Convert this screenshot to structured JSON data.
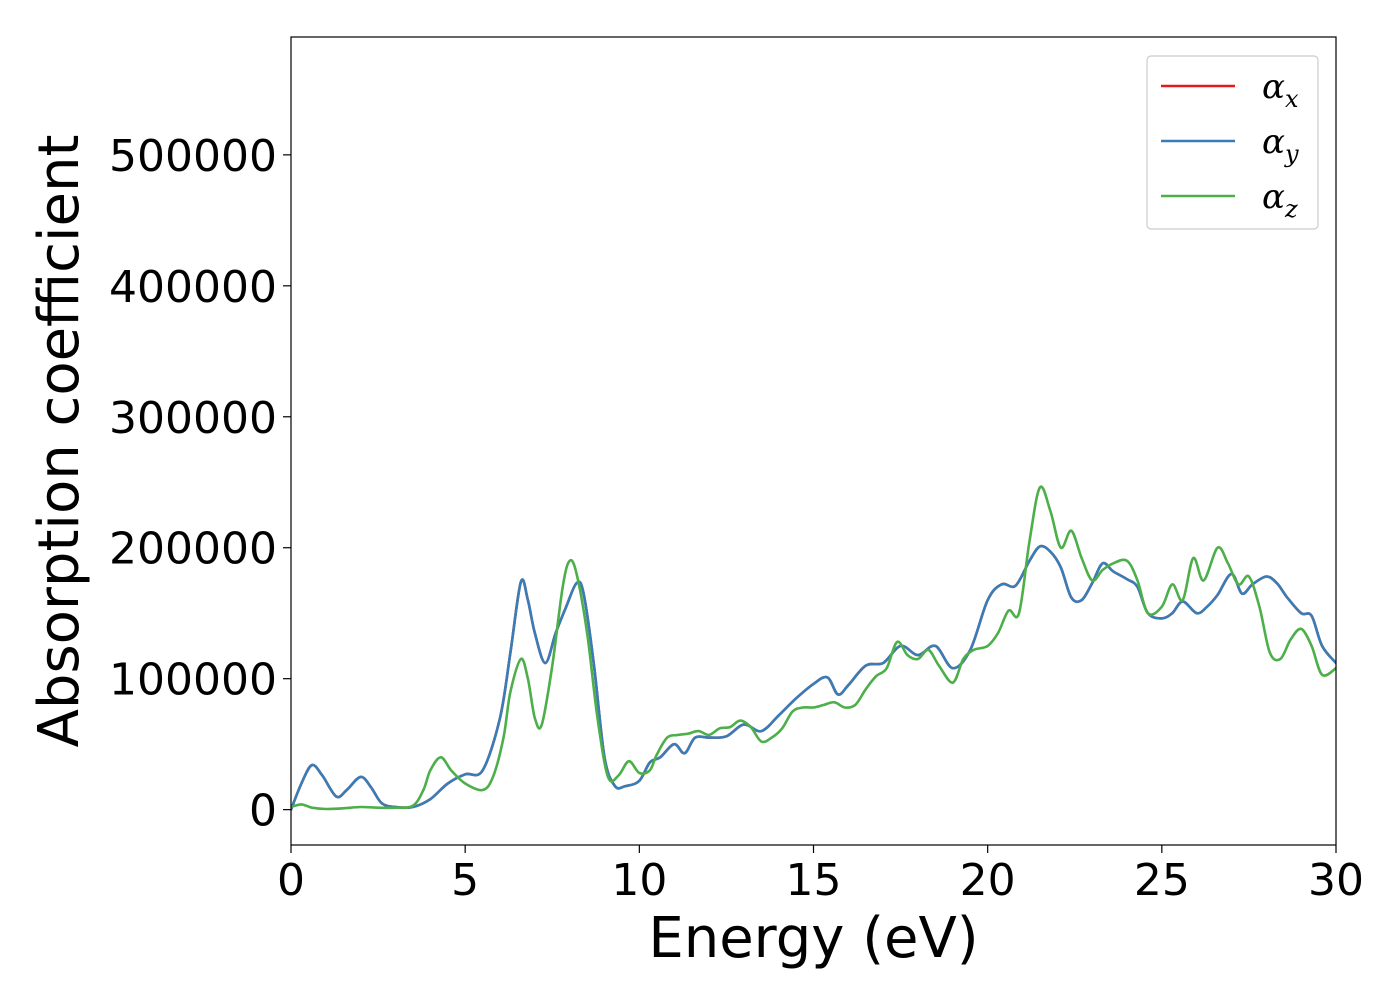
{
  "chart_data": {
    "type": "line",
    "xlabel": "Energy (eV)",
    "ylabel": "Absorption coefficient",
    "xlim": [
      0,
      30
    ],
    "ylim": [
      -27000,
      590000
    ],
    "xticks": [
      0,
      5,
      10,
      15,
      20,
      25,
      30
    ],
    "yticks": [
      0,
      100000,
      200000,
      300000,
      400000,
      500000
    ],
    "grid": false,
    "legend_position": "top-right",
    "series": [
      {
        "name": "α_x",
        "symbol": "α",
        "subscript": "x",
        "color": "#e41a1c",
        "x": [
          0,
          0.3,
          0.6,
          0.9,
          1.3,
          1.6,
          2.0,
          2.3,
          2.6,
          3.0,
          3.5,
          4.0,
          4.5,
          5.0,
          5.5,
          6.0,
          6.3,
          6.6,
          6.8,
          7.0,
          7.3,
          7.6,
          7.9,
          8.2,
          8.4,
          8.7,
          9.0,
          9.3,
          9.6,
          10.0,
          10.3,
          10.6,
          11.0,
          11.3,
          11.6,
          12.0,
          12.5,
          13.0,
          13.5,
          14.0,
          14.5,
          15.0,
          15.4,
          15.7,
          16.0,
          16.5,
          17.0,
          17.5,
          18.0,
          18.5,
          19.0,
          19.5,
          20.0,
          20.4,
          20.8,
          21.2,
          21.5,
          21.8,
          22.1,
          22.4,
          22.7,
          23.0,
          23.3,
          23.6,
          24.0,
          24.3,
          24.6,
          25.0,
          25.3,
          25.6,
          26.0,
          26.3,
          26.6,
          27.0,
          27.3,
          27.6,
          28.0,
          28.3,
          28.6,
          29.0,
          29.3,
          29.6,
          30.0
        ],
        "y": [
          0,
          20000,
          34000,
          26000,
          10000,
          15000,
          25000,
          17000,
          5000,
          2000,
          2000,
          8000,
          20000,
          27000,
          30000,
          70000,
          120000,
          174000,
          160000,
          135000,
          112000,
          135000,
          155000,
          173000,
          165000,
          110000,
          40000,
          18000,
          18000,
          22000,
          36000,
          40000,
          50000,
          43000,
          55000,
          55000,
          56000,
          65000,
          60000,
          72000,
          85000,
          96000,
          101000,
          88000,
          95000,
          110000,
          112000,
          125000,
          118000,
          125000,
          108000,
          122000,
          160000,
          172000,
          171000,
          190000,
          201000,
          197000,
          185000,
          162000,
          160000,
          173000,
          188000,
          182000,
          176000,
          170000,
          150000,
          146000,
          150000,
          159000,
          150000,
          155000,
          164000,
          180000,
          165000,
          172000,
          178000,
          173000,
          162000,
          150000,
          148000,
          125000,
          112000
        ]
      },
      {
        "name": "α_y",
        "symbol": "α",
        "subscript": "y",
        "color": "#377eb8",
        "x": [
          0,
          0.3,
          0.6,
          0.9,
          1.3,
          1.6,
          2.0,
          2.3,
          2.6,
          3.0,
          3.5,
          4.0,
          4.5,
          5.0,
          5.5,
          6.0,
          6.3,
          6.6,
          6.8,
          7.0,
          7.3,
          7.6,
          7.9,
          8.2,
          8.4,
          8.7,
          9.0,
          9.3,
          9.6,
          10.0,
          10.3,
          10.6,
          11.0,
          11.3,
          11.6,
          12.0,
          12.5,
          13.0,
          13.5,
          14.0,
          14.5,
          15.0,
          15.4,
          15.7,
          16.0,
          16.5,
          17.0,
          17.5,
          18.0,
          18.5,
          19.0,
          19.5,
          20.0,
          20.4,
          20.8,
          21.2,
          21.5,
          21.8,
          22.1,
          22.4,
          22.7,
          23.0,
          23.3,
          23.6,
          24.0,
          24.3,
          24.6,
          25.0,
          25.3,
          25.6,
          26.0,
          26.3,
          26.6,
          27.0,
          27.3,
          27.6,
          28.0,
          28.3,
          28.6,
          29.0,
          29.3,
          29.6,
          30.0
        ],
        "y": [
          0,
          20000,
          34000,
          26000,
          10000,
          15000,
          25000,
          17000,
          5000,
          2000,
          2000,
          8000,
          20000,
          27000,
          30000,
          70000,
          120000,
          174000,
          160000,
          135000,
          112000,
          135000,
          155000,
          173000,
          165000,
          110000,
          40000,
          18000,
          18000,
          22000,
          36000,
          40000,
          50000,
          43000,
          55000,
          55000,
          56000,
          65000,
          60000,
          72000,
          85000,
          96000,
          101000,
          88000,
          95000,
          110000,
          112000,
          125000,
          118000,
          125000,
          108000,
          122000,
          160000,
          172000,
          171000,
          190000,
          201000,
          197000,
          185000,
          162000,
          160000,
          173000,
          188000,
          182000,
          176000,
          170000,
          150000,
          146000,
          150000,
          159000,
          150000,
          155000,
          164000,
          180000,
          165000,
          172000,
          178000,
          173000,
          162000,
          150000,
          148000,
          125000,
          112000
        ]
      },
      {
        "name": "α_z",
        "symbol": "α",
        "subscript": "z",
        "color": "#4daf4a",
        "x": [
          0,
          0.3,
          0.6,
          1.0,
          1.5,
          2.0,
          2.5,
          3.0,
          3.5,
          3.8,
          4.0,
          4.3,
          4.6,
          5.0,
          5.5,
          5.8,
          6.1,
          6.3,
          6.6,
          6.8,
          7.0,
          7.2,
          7.5,
          7.8,
          8.0,
          8.2,
          8.5,
          8.8,
          9.1,
          9.4,
          9.7,
          10.0,
          10.3,
          10.5,
          10.8,
          11.1,
          11.4,
          11.7,
          12.0,
          12.3,
          12.6,
          12.9,
          13.2,
          13.5,
          13.8,
          14.1,
          14.4,
          14.7,
          15.0,
          15.3,
          15.6,
          15.9,
          16.2,
          16.5,
          16.8,
          17.1,
          17.4,
          17.7,
          18.0,
          18.3,
          18.6,
          19.0,
          19.3,
          19.6,
          20.0,
          20.3,
          20.6,
          20.9,
          21.2,
          21.5,
          21.8,
          22.1,
          22.4,
          22.7,
          23.0,
          23.3,
          23.6,
          24.0,
          24.3,
          24.6,
          25.0,
          25.3,
          25.6,
          25.9,
          26.2,
          26.6,
          26.9,
          27.2,
          27.5,
          27.8,
          28.1,
          28.4,
          28.7,
          29.0,
          29.3,
          29.6,
          30.0
        ],
        "y": [
          2000,
          4000,
          1500,
          500,
          1000,
          2000,
          1500,
          1500,
          3000,
          15000,
          30000,
          40000,
          30000,
          20000,
          15000,
          25000,
          55000,
          90000,
          115000,
          100000,
          70000,
          65000,
          110000,
          170000,
          190000,
          180000,
          135000,
          70000,
          25000,
          26000,
          37000,
          28000,
          30000,
          42000,
          55000,
          57000,
          58000,
          60000,
          57000,
          62000,
          63000,
          68000,
          63000,
          52000,
          55000,
          62000,
          75000,
          78000,
          78000,
          80000,
          82000,
          78000,
          80000,
          92000,
          102000,
          108000,
          128000,
          118000,
          115000,
          122000,
          110000,
          97000,
          115000,
          122000,
          125000,
          135000,
          152000,
          150000,
          205000,
          246000,
          228000,
          200000,
          213000,
          192000,
          175000,
          183000,
          188000,
          190000,
          175000,
          150000,
          155000,
          172000,
          160000,
          192000,
          175000,
          200000,
          188000,
          172000,
          178000,
          155000,
          120000,
          115000,
          130000,
          138000,
          125000,
          103000,
          108000
        ]
      }
    ]
  }
}
